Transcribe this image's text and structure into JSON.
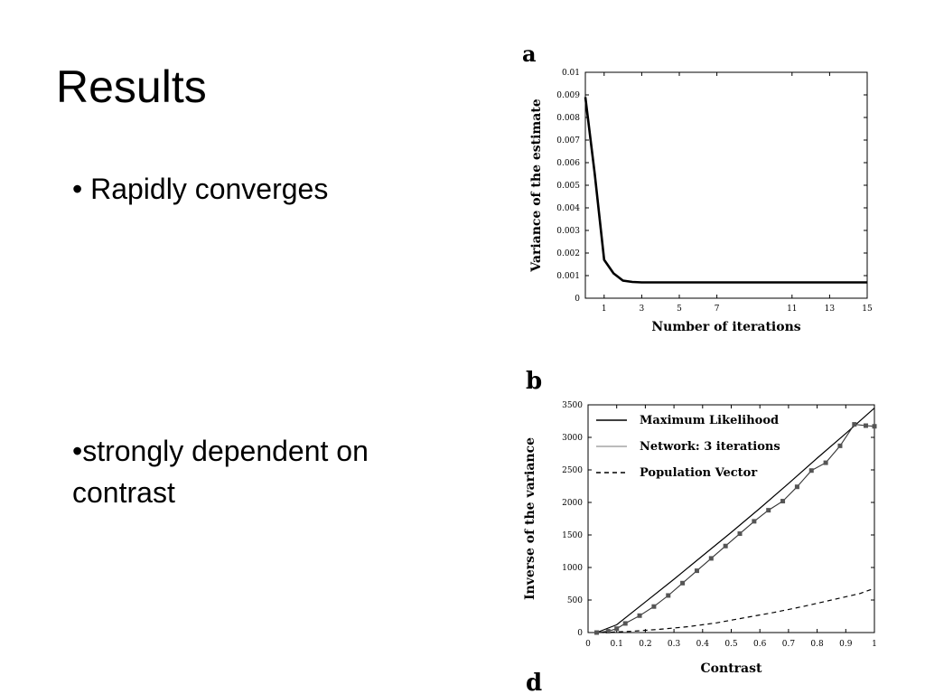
{
  "slide": {
    "title": "Results",
    "bullets": [
      "• Rapidly converges",
      "•strongly dependent on contrast"
    ]
  },
  "panel_letters": {
    "a": "a",
    "b": "b",
    "d": "d"
  },
  "chart_data": [
    {
      "type": "line",
      "panel": "a",
      "title": "",
      "xlabel": "Number of iterations",
      "ylabel": "Variance of the estimate",
      "xlim": [
        0,
        15
      ],
      "ylim": [
        0,
        0.01
      ],
      "xticks": [
        1,
        3,
        5,
        7,
        11,
        13,
        15
      ],
      "xtick_labels": [
        "1",
        "3",
        "5",
        "7",
        "11",
        "13",
        "15"
      ],
      "yticks": [
        0,
        0.001,
        0.002,
        0.003,
        0.004,
        0.005,
        0.006,
        0.007,
        0.008,
        0.009,
        0.01
      ],
      "ytick_labels": [
        "0",
        "0.001",
        "0.002",
        "0.003",
        "0.004",
        "0.005",
        "0.006",
        "0.007",
        "0.008",
        "0.009",
        "0.01"
      ],
      "grid": false,
      "series": [
        {
          "x": [
            0,
            0.5,
            1,
            1.5,
            2,
            2.5,
            3,
            4,
            5,
            6,
            7,
            8,
            9,
            10,
            11,
            12,
            13,
            14,
            15
          ],
          "y": [
            0.0089,
            0.0055,
            0.0017,
            0.0011,
            0.00078,
            0.00072,
            0.0007,
            0.0007,
            0.0007,
            0.0007,
            0.0007,
            0.0007,
            0.0007,
            0.0007,
            0.0007,
            0.0007,
            0.0007,
            0.0007,
            0.0007
          ]
        }
      ]
    },
    {
      "type": "line",
      "panel": "b",
      "title": "",
      "xlabel": "Contrast",
      "ylabel": "Inverse of the variance",
      "xlim": [
        0,
        1
      ],
      "ylim": [
        0,
        3500
      ],
      "xticks": [
        0,
        0.1,
        0.2,
        0.3,
        0.4,
        0.5,
        0.6,
        0.7,
        0.8,
        0.9,
        1
      ],
      "xtick_labels": [
        "0",
        "0.1",
        "0.2",
        "0.3",
        "0.4",
        "0.5",
        "0.6",
        "0.7",
        "0.8",
        "0.9",
        "1"
      ],
      "yticks": [
        0,
        500,
        1000,
        1500,
        2000,
        2500,
        3000,
        3500
      ],
      "ytick_labels": [
        "0",
        "500",
        "1000",
        "1500",
        "2000",
        "2500",
        "3000",
        "3500"
      ],
      "legend": "top-left",
      "grid": false,
      "series": [
        {
          "name": "Maximum Likelihood",
          "style": "solid",
          "x": [
            0.03,
            0.1,
            0.2,
            0.3,
            0.4,
            0.5,
            0.6,
            0.7,
            0.8,
            0.9,
            1.0
          ],
          "y": [
            0,
            120,
            470,
            820,
            1180,
            1540,
            1910,
            2290,
            2680,
            3060,
            3450
          ]
        },
        {
          "name": "Network: 3 iterations",
          "style": "marked",
          "x": [
            0.03,
            0.07,
            0.1,
            0.13,
            0.18,
            0.23,
            0.28,
            0.33,
            0.38,
            0.43,
            0.48,
            0.53,
            0.58,
            0.63,
            0.68,
            0.73,
            0.78,
            0.83,
            0.88,
            0.93,
            0.97,
            1.0
          ],
          "y": [
            0,
            20,
            60,
            140,
            260,
            400,
            570,
            760,
            950,
            1140,
            1330,
            1520,
            1710,
            1880,
            2020,
            2240,
            2490,
            2610,
            2870,
            3200,
            3180,
            3170
          ]
        },
        {
          "name": "Population Vector",
          "style": "dashed",
          "x": [
            0.05,
            0.15,
            0.25,
            0.35,
            0.45,
            0.55,
            0.65,
            0.75,
            0.85,
            0.95,
            1.0
          ],
          "y": [
            0,
            20,
            50,
            90,
            150,
            230,
            310,
            400,
            500,
            600,
            680
          ]
        }
      ]
    }
  ]
}
